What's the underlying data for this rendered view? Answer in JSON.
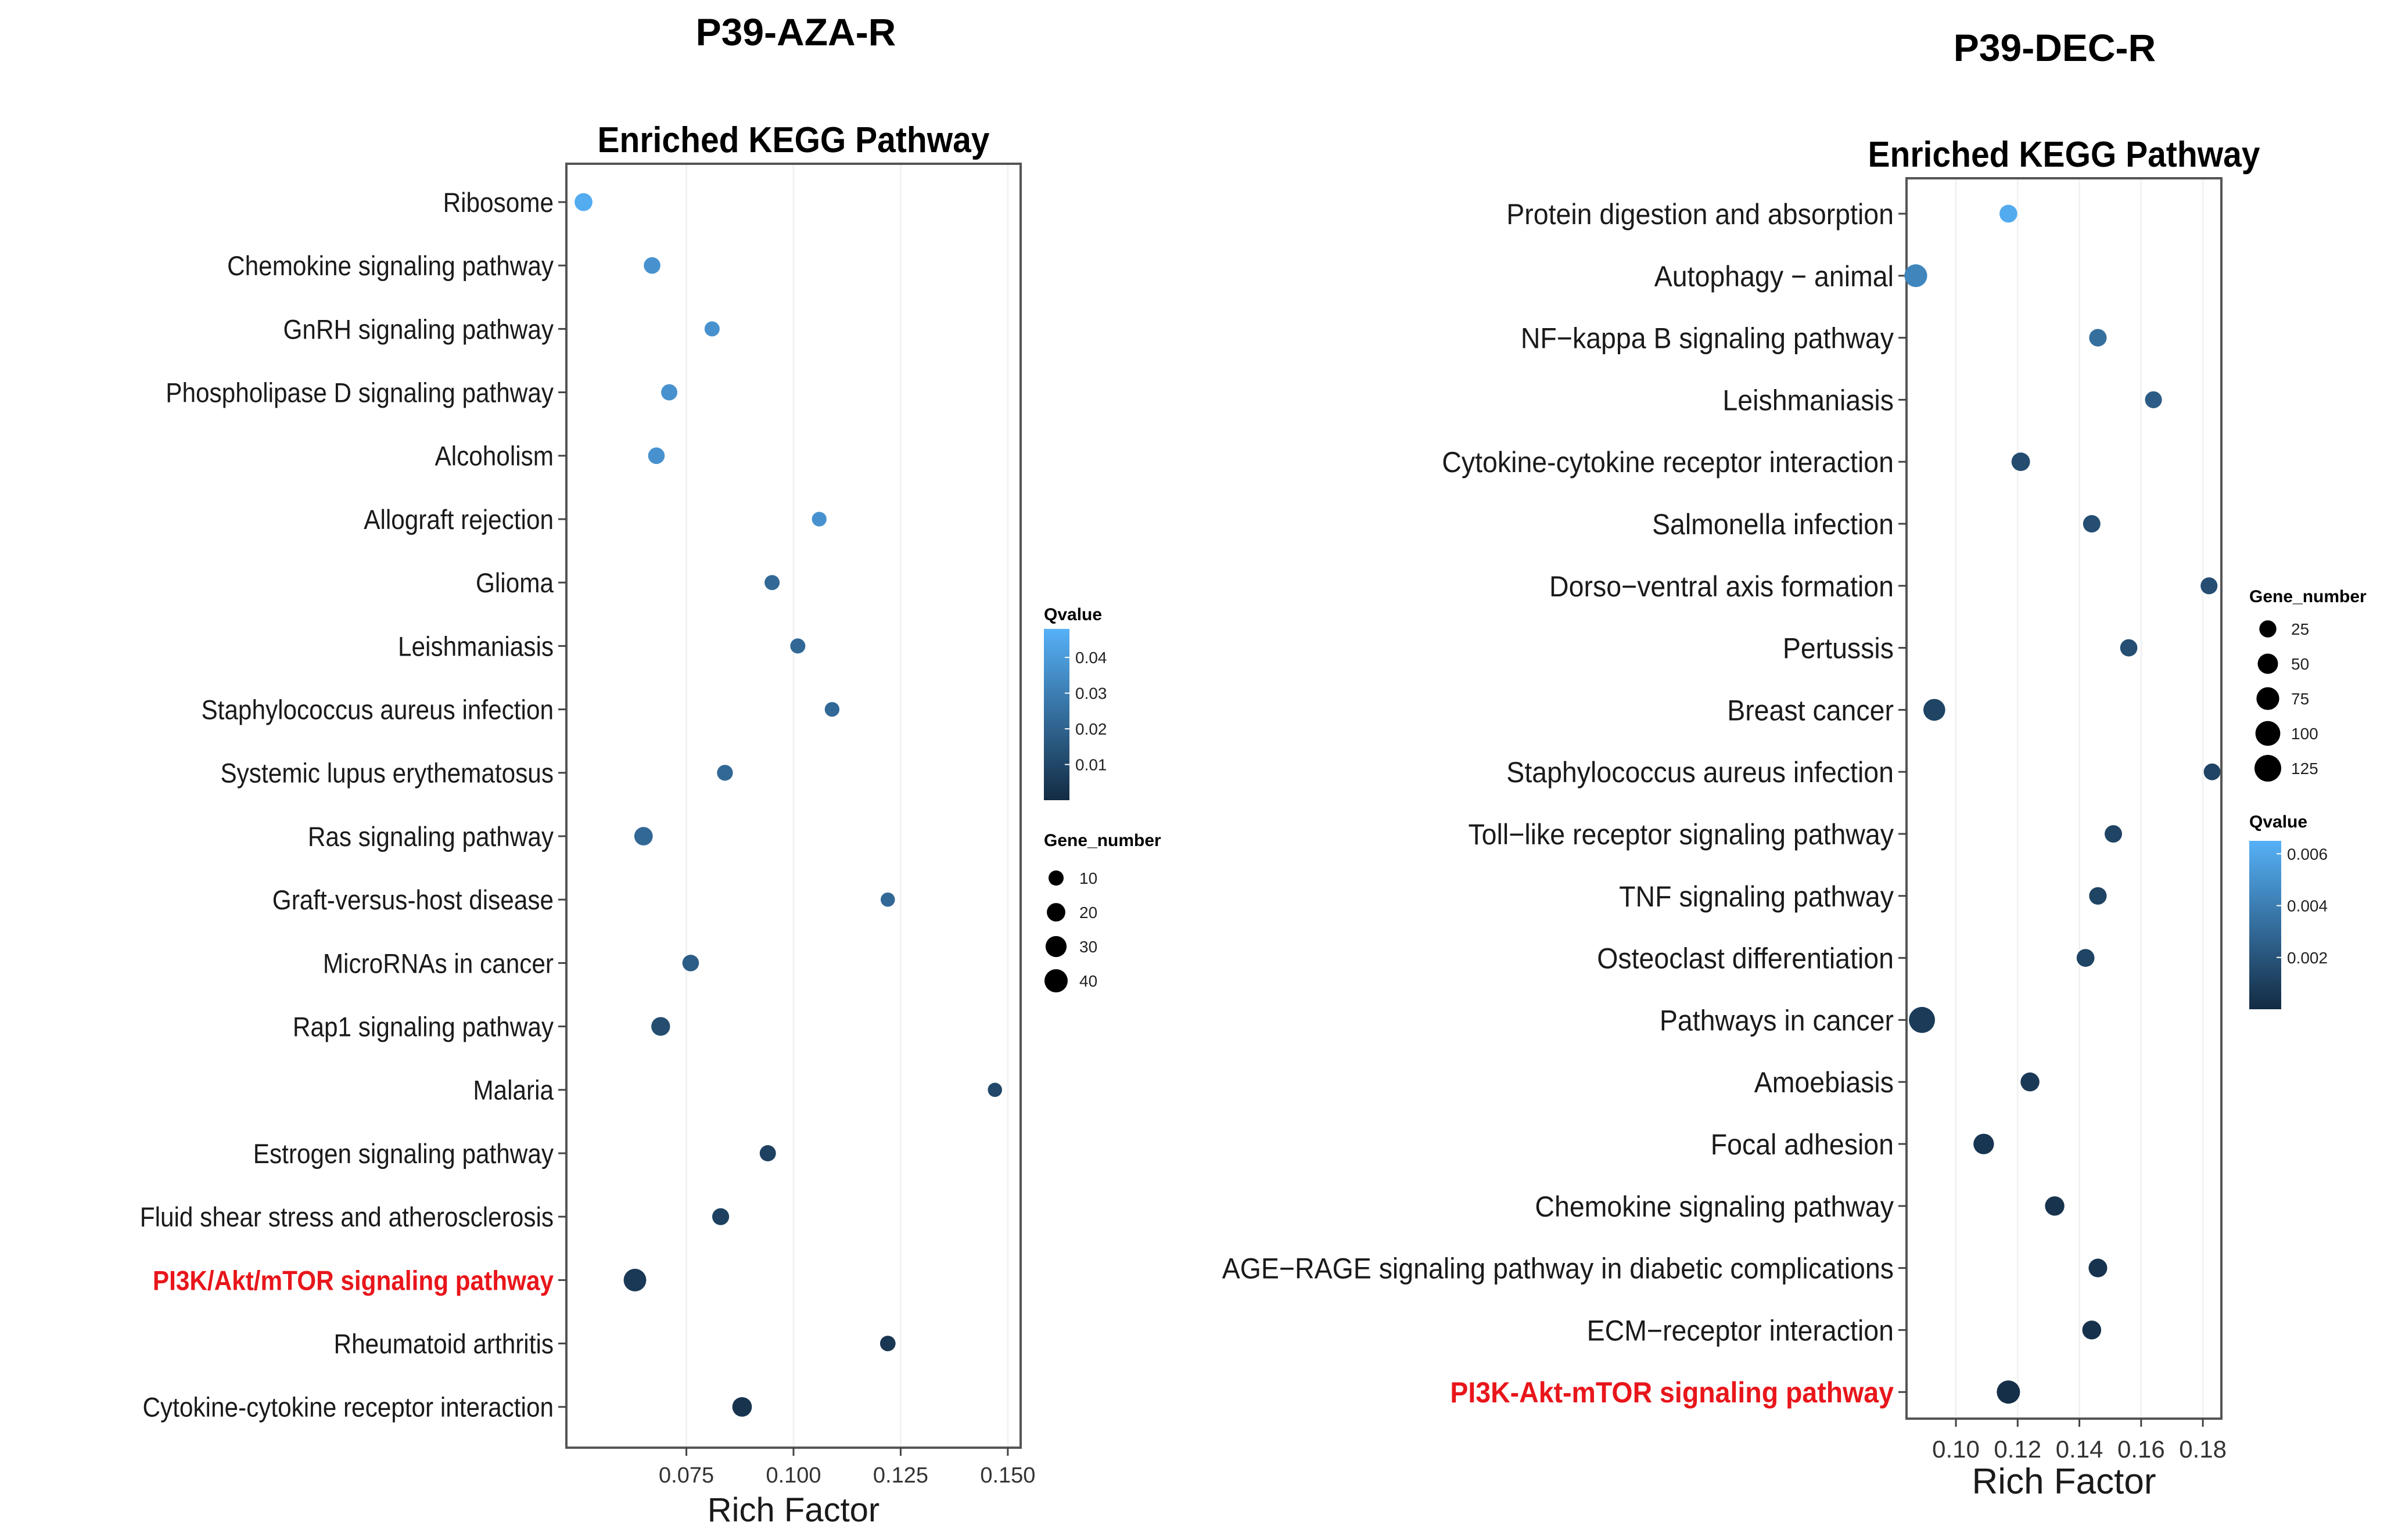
{
  "chart_data": [
    {
      "type": "scatter",
      "figure_label": "P39-AZA-R",
      "title": "Enriched KEGG Pathway",
      "xlabel": "Rich Factor",
      "ylabel": "",
      "xlim": [
        0.047,
        0.153
      ],
      "xticks": [
        0.075,
        0.1,
        0.125,
        0.15
      ],
      "xtick_labels": [
        "0.075",
        "0.100",
        "0.125",
        "0.150"
      ],
      "qvalue_range": [
        0,
        0.048
      ],
      "color_legend": {
        "title": "Qvalue",
        "ticks": [
          0.04,
          0.03,
          0.02,
          0.01
        ],
        "tick_labels": [
          "0.04",
          "0.03",
          "0.02",
          "0.01"
        ]
      },
      "size_legend": {
        "title": "Gene_number",
        "values": [
          10,
          20,
          30,
          40
        ],
        "labels": [
          "10",
          "20",
          "30",
          "40"
        ]
      },
      "highlight_color": "#e8161b",
      "points": [
        {
          "pathway": "Ribosome",
          "rich_factor": 0.051,
          "qvalue": 0.046,
          "gene_number": 18,
          "highlight": false
        },
        {
          "pathway": "Chemokine signaling pathway",
          "rich_factor": 0.067,
          "qvalue": 0.037,
          "gene_number": 14,
          "highlight": false
        },
        {
          "pathway": "GnRH signaling pathway",
          "rich_factor": 0.081,
          "qvalue": 0.037,
          "gene_number": 10,
          "highlight": false
        },
        {
          "pathway": "Phospholipase D signaling pathway",
          "rich_factor": 0.071,
          "qvalue": 0.037,
          "gene_number": 13,
          "highlight": false
        },
        {
          "pathway": "Alcoholism",
          "rich_factor": 0.068,
          "qvalue": 0.037,
          "gene_number": 14,
          "highlight": false
        },
        {
          "pathway": "Allograft rejection",
          "rich_factor": 0.106,
          "qvalue": 0.037,
          "gene_number": 9,
          "highlight": false
        },
        {
          "pathway": "Glioma",
          "rich_factor": 0.095,
          "qvalue": 0.022,
          "gene_number": 10,
          "highlight": false
        },
        {
          "pathway": "Leishmaniasis",
          "rich_factor": 0.101,
          "qvalue": 0.022,
          "gene_number": 10,
          "highlight": false
        },
        {
          "pathway": "Staphylococcus aureus infection",
          "rich_factor": 0.109,
          "qvalue": 0.022,
          "gene_number": 9,
          "highlight": false
        },
        {
          "pathway": "Systemic lupus erythematosus",
          "rich_factor": 0.084,
          "qvalue": 0.022,
          "gene_number": 12,
          "highlight": false
        },
        {
          "pathway": "Ras signaling pathway",
          "rich_factor": 0.065,
          "qvalue": 0.022,
          "gene_number": 20,
          "highlight": false
        },
        {
          "pathway": "Graft-versus-host disease",
          "rich_factor": 0.122,
          "qvalue": 0.022,
          "gene_number": 8,
          "highlight": false
        },
        {
          "pathway": "MicroRNAs in cancer",
          "rich_factor": 0.076,
          "qvalue": 0.018,
          "gene_number": 14,
          "highlight": false
        },
        {
          "pathway": "Rap1 signaling pathway",
          "rich_factor": 0.069,
          "qvalue": 0.012,
          "gene_number": 21,
          "highlight": false
        },
        {
          "pathway": "Malaria",
          "rich_factor": 0.147,
          "qvalue": 0.01,
          "gene_number": 8,
          "highlight": false
        },
        {
          "pathway": "Estrogen signaling pathway",
          "rich_factor": 0.094,
          "qvalue": 0.008,
          "gene_number": 13,
          "highlight": false
        },
        {
          "pathway": "Fluid shear stress and atherosclerosis",
          "rich_factor": 0.083,
          "qvalue": 0.008,
          "gene_number": 15,
          "highlight": false
        },
        {
          "pathway": "PI3K/Akt/mTOR signaling pathway",
          "rich_factor": 0.063,
          "qvalue": 0.005,
          "gene_number": 37,
          "highlight": true
        },
        {
          "pathway": "Rheumatoid arthritis",
          "rich_factor": 0.122,
          "qvalue": 0.004,
          "gene_number": 11,
          "highlight": false
        },
        {
          "pathway": "Cytokine-cytokine receptor interaction",
          "rich_factor": 0.088,
          "qvalue": 0.003,
          "gene_number": 24,
          "highlight": false
        }
      ]
    },
    {
      "type": "scatter",
      "figure_label": "P39-DEC-R",
      "title": "Enriched KEGG Pathway",
      "xlabel": "Rich Factor",
      "ylabel": "",
      "xlim": [
        0.084,
        0.186
      ],
      "xticks": [
        0.1,
        0.12,
        0.14,
        0.16,
        0.18
      ],
      "xtick_labels": [
        "0.10",
        "0.12",
        "0.14",
        "0.16",
        "0.18"
      ],
      "qvalue_range": [
        0,
        0.0065
      ],
      "color_legend": {
        "title": "Qvalue",
        "ticks": [
          0.006,
          0.004,
          0.002
        ],
        "tick_labels": [
          "0.006",
          "0.004",
          "0.002"
        ]
      },
      "size_legend": {
        "title": "Gene_number",
        "values": [
          25,
          50,
          75,
          100,
          125
        ],
        "labels": [
          "25",
          "50",
          "75",
          "100",
          "125"
        ]
      },
      "highlight_color": "#e8161b",
      "points": [
        {
          "pathway": "Protein digestion and absorption",
          "rich_factor": 0.117,
          "qvalue": 0.0062,
          "gene_number": 30,
          "highlight": false
        },
        {
          "pathway": "Autophagy − animal",
          "rich_factor": 0.087,
          "qvalue": 0.0044,
          "gene_number": 75,
          "highlight": false
        },
        {
          "pathway": "NF−kappa B signaling pathway",
          "rich_factor": 0.146,
          "qvalue": 0.0033,
          "gene_number": 28,
          "highlight": false
        },
        {
          "pathway": "Leishmaniasis",
          "rich_factor": 0.164,
          "qvalue": 0.0024,
          "gene_number": 24,
          "highlight": false
        },
        {
          "pathway": "Cytokine-cytokine receptor interaction",
          "rich_factor": 0.121,
          "qvalue": 0.0016,
          "gene_number": 35,
          "highlight": false
        },
        {
          "pathway": "Salmonella infection",
          "rich_factor": 0.144,
          "qvalue": 0.0017,
          "gene_number": 27,
          "highlight": false
        },
        {
          "pathway": "Dorso−ventral axis formation",
          "rich_factor": 0.182,
          "qvalue": 0.0017,
          "gene_number": 24,
          "highlight": false
        },
        {
          "pathway": "Pertussis",
          "rich_factor": 0.156,
          "qvalue": 0.0017,
          "gene_number": 26,
          "highlight": false
        },
        {
          "pathway": "Breast cancer",
          "rich_factor": 0.093,
          "qvalue": 0.0012,
          "gene_number": 65,
          "highlight": false
        },
        {
          "pathway": "Staphylococcus aureus infection",
          "rich_factor": 0.183,
          "qvalue": 0.0012,
          "gene_number": 23,
          "highlight": false
        },
        {
          "pathway": "Toll−like receptor signaling pathway",
          "rich_factor": 0.151,
          "qvalue": 0.0012,
          "gene_number": 27,
          "highlight": false
        },
        {
          "pathway": "TNF signaling pathway",
          "rich_factor": 0.146,
          "qvalue": 0.0012,
          "gene_number": 28,
          "highlight": false
        },
        {
          "pathway": "Osteoclast differentiation",
          "rich_factor": 0.142,
          "qvalue": 0.0012,
          "gene_number": 30,
          "highlight": false
        },
        {
          "pathway": "Pathways in cancer",
          "rich_factor": 0.089,
          "qvalue": 0.0008,
          "gene_number": 115,
          "highlight": false
        },
        {
          "pathway": "Amoebiasis",
          "rich_factor": 0.124,
          "qvalue": 0.0007,
          "gene_number": 38,
          "highlight": false
        },
        {
          "pathway": "Focal adhesion",
          "rich_factor": 0.109,
          "qvalue": 0.0005,
          "gene_number": 52,
          "highlight": false
        },
        {
          "pathway": "Chemokine signaling pathway",
          "rich_factor": 0.132,
          "qvalue": 0.0004,
          "gene_number": 42,
          "highlight": false
        },
        {
          "pathway": "AGE−RAGE signaling pathway in diabetic complications",
          "rich_factor": 0.146,
          "qvalue": 0.0004,
          "gene_number": 36,
          "highlight": false
        },
        {
          "pathway": "ECM−receptor interaction",
          "rich_factor": 0.144,
          "qvalue": 0.0003,
          "gene_number": 38,
          "highlight": false
        },
        {
          "pathway": "PI3K-Akt-mTOR signaling pathway",
          "rich_factor": 0.117,
          "qvalue": 0.0002,
          "gene_number": 80,
          "highlight": true
        }
      ]
    }
  ]
}
